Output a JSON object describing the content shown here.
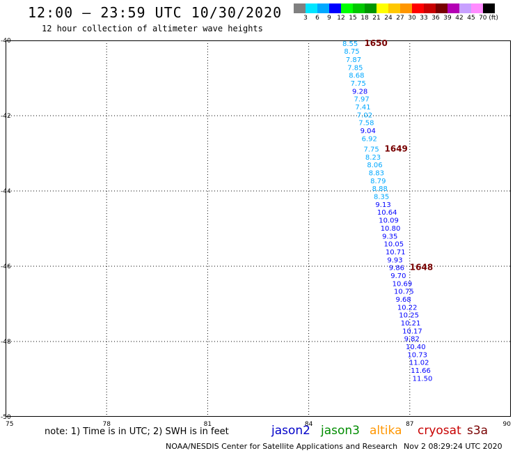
{
  "header": {
    "title": "12:00 – 23:59 UTC 10/30/2020",
    "subtitle": "12 hour collection of altimeter wave heights"
  },
  "color_scale": {
    "colors": [
      "#808080",
      "#00e5ff",
      "#00a8ff",
      "#0000ff",
      "#00ff00",
      "#00c800",
      "#009600",
      "#ffff00",
      "#ffc800",
      "#ff9600",
      "#ff0000",
      "#c80000",
      "#780000",
      "#b400b4",
      "#c8a0ff",
      "#ff8cff",
      "#000000"
    ],
    "labels": [
      "3",
      "6",
      "9",
      "12",
      "15",
      "18",
      "21",
      "24",
      "27",
      "30",
      "33",
      "36",
      "39",
      "42",
      "45",
      "70 (ft)"
    ]
  },
  "map": {
    "lat_range": [
      -50,
      -40
    ],
    "lon_range": [
      75,
      90
    ],
    "y_ticks": [
      "-40",
      "-42",
      "-44",
      "-46",
      "-48",
      "-50"
    ],
    "x_ticks": [
      "75",
      "78",
      "81",
      "84",
      "87",
      "90"
    ]
  },
  "track": {
    "satellite": "jason2",
    "points": [
      {
        "lat": -40.07,
        "lon": 85.0,
        "swh": "8.55"
      },
      {
        "lat": -40.28,
        "lon": 85.05,
        "swh": "8.75"
      },
      {
        "lat": -40.5,
        "lon": 85.1,
        "swh": "7.87"
      },
      {
        "lat": -40.71,
        "lon": 85.15,
        "swh": "7.85"
      },
      {
        "lat": -40.92,
        "lon": 85.19,
        "swh": "8.68"
      },
      {
        "lat": -41.13,
        "lon": 85.24,
        "swh": "7.75"
      },
      {
        "lat": -41.34,
        "lon": 85.29,
        "swh": "9.28"
      },
      {
        "lat": -41.55,
        "lon": 85.34,
        "swh": "7.97"
      },
      {
        "lat": -41.76,
        "lon": 85.38,
        "swh": "7.41"
      },
      {
        "lat": -41.97,
        "lon": 85.43,
        "swh": "7.02"
      },
      {
        "lat": -42.18,
        "lon": 85.48,
        "swh": "7.58"
      },
      {
        "lat": -42.39,
        "lon": 85.53,
        "swh": "9.04"
      },
      {
        "lat": -42.6,
        "lon": 85.57,
        "swh": "6.92"
      },
      {
        "lat": -42.88,
        "lon": 85.63,
        "swh": "7.75"
      },
      {
        "lat": -43.09,
        "lon": 85.68,
        "swh": "8.23"
      },
      {
        "lat": -43.3,
        "lon": 85.73,
        "swh": "8.06"
      },
      {
        "lat": -43.51,
        "lon": 85.78,
        "swh": "8.83"
      },
      {
        "lat": -43.72,
        "lon": 85.83,
        "swh": "8.79"
      },
      {
        "lat": -43.93,
        "lon": 85.88,
        "swh": "8.88"
      },
      {
        "lat": -44.14,
        "lon": 85.93,
        "swh": "8.35"
      },
      {
        "lat": -44.35,
        "lon": 85.98,
        "swh": "9.13"
      },
      {
        "lat": -44.56,
        "lon": 86.03,
        "swh": "10.64"
      },
      {
        "lat": -44.77,
        "lon": 86.08,
        "swh": "10.09"
      },
      {
        "lat": -44.98,
        "lon": 86.13,
        "swh": "10.80"
      },
      {
        "lat": -45.19,
        "lon": 86.18,
        "swh": "9.35"
      },
      {
        "lat": -45.4,
        "lon": 86.23,
        "swh": "10.05"
      },
      {
        "lat": -45.61,
        "lon": 86.28,
        "swh": "10.71"
      },
      {
        "lat": -45.82,
        "lon": 86.33,
        "swh": "9.93"
      },
      {
        "lat": -46.03,
        "lon": 86.38,
        "swh": "9.86"
      },
      {
        "lat": -46.24,
        "lon": 86.43,
        "swh": "9.70"
      },
      {
        "lat": -46.45,
        "lon": 86.48,
        "swh": "10.69"
      },
      {
        "lat": -46.66,
        "lon": 86.53,
        "swh": "10.75"
      },
      {
        "lat": -46.87,
        "lon": 86.58,
        "swh": "9.68"
      },
      {
        "lat": -47.08,
        "lon": 86.63,
        "swh": "10.22"
      },
      {
        "lat": -47.29,
        "lon": 86.68,
        "swh": "10.25"
      },
      {
        "lat": -47.5,
        "lon": 86.73,
        "swh": "10.21"
      },
      {
        "lat": -47.71,
        "lon": 86.78,
        "swh": "10.17"
      },
      {
        "lat": -47.92,
        "lon": 86.83,
        "swh": "9.82"
      },
      {
        "lat": -48.13,
        "lon": 86.88,
        "swh": "10.40"
      },
      {
        "lat": -48.34,
        "lon": 86.93,
        "swh": "10.73"
      },
      {
        "lat": -48.55,
        "lon": 86.98,
        "swh": "11.02"
      },
      {
        "lat": -48.76,
        "lon": 87.03,
        "swh": "11.66"
      },
      {
        "lat": -48.97,
        "lon": 87.08,
        "swh": "11.50"
      }
    ],
    "time_labels": [
      {
        "lat": -40.07,
        "lon": 85.65,
        "text": "1650"
      },
      {
        "lat": -42.88,
        "lon": 86.25,
        "text": "1649"
      },
      {
        "lat": -46.03,
        "lon": 87.0,
        "text": "1648"
      }
    ]
  },
  "footer": {
    "note": "note:  1) Time is in UTC;  2) SWH is in feet",
    "satellites": [
      {
        "name": "jason2",
        "color": "#0000c8"
      },
      {
        "name": "jason3",
        "color": "#008c00"
      },
      {
        "name": "altika",
        "color": "#ff9600"
      },
      {
        "name": "cryosat",
        "color": "#c80000"
      },
      {
        "name": "s3a",
        "color": "#780000"
      }
    ],
    "credit": "NOAA/NESDIS Center for Satellite Applications and Research",
    "timestamp": "Nov  2 08:29:24 UTC 2020"
  }
}
